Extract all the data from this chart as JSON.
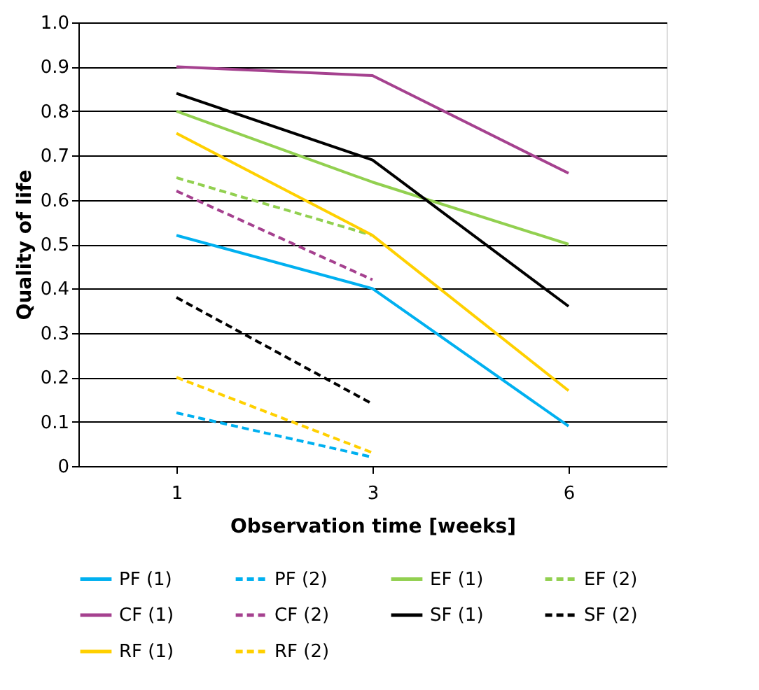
{
  "chart_data": {
    "type": "line",
    "xlabel": "Observation time [weeks]",
    "ylabel": "Quality of life",
    "categories": [
      "1",
      "3",
      "6"
    ],
    "ylim": [
      0,
      1.0
    ],
    "yticks": [
      0,
      {
        "value": 0.1,
        "label": "0.1"
      },
      {
        "value": 0.2,
        "label": "0.2"
      },
      {
        "value": 0.3,
        "label": "0.3"
      },
      {
        "value": 0.4,
        "label": "0.4"
      },
      {
        "value": 0.5,
        "label": "0.5"
      },
      {
        "value": 0.6,
        "label": "0.6"
      },
      {
        "value": 0.7,
        "label": "0.7"
      },
      {
        "value": 0.8,
        "label": "0.8"
      },
      {
        "value": 0.9,
        "label": "0.9"
      },
      {
        "value": 1.0,
        "label": "1.0"
      }
    ],
    "grid": "y",
    "legend": "bottom",
    "marker": "none",
    "line_style": "solid",
    "series": [
      {
        "name": "PF (1)",
        "color": "#00b0f0",
        "values": [
          0.52,
          0.4,
          0.09
        ]
      },
      {
        "name": "PF (2)",
        "color": "#00b0f0",
        "line_style": "dashed",
        "values": [
          0.12,
          0.02,
          null
        ]
      },
      {
        "name": "EF (1)",
        "color": "#92d050",
        "values": [
          0.8,
          0.64,
          0.5
        ]
      },
      {
        "name": "EF (2)",
        "color": "#92d050",
        "line_style": "dashed",
        "values": [
          0.65,
          0.52,
          null
        ]
      },
      {
        "name": "CF (1)",
        "color": "#a5418f",
        "values": [
          0.9,
          0.88,
          0.66
        ]
      },
      {
        "name": "CF (2)",
        "color": "#a5418f",
        "line_style": "dashed",
        "values": [
          0.62,
          0.42,
          null
        ]
      },
      {
        "name": "SF (1)",
        "color": "#000000",
        "values": [
          0.84,
          0.69,
          0.36
        ]
      },
      {
        "name": "SF (2)",
        "color": "#000000",
        "line_style": "dashed",
        "values": [
          0.38,
          0.14,
          null
        ]
      },
      {
        "name": "RF (1)",
        "color": "#ffd000",
        "values": [
          0.75,
          0.52,
          0.17
        ]
      },
      {
        "name": "RF (2)",
        "color": "#ffd000",
        "line_style": "dashed",
        "values": [
          0.2,
          0.03,
          null
        ]
      }
    ]
  }
}
